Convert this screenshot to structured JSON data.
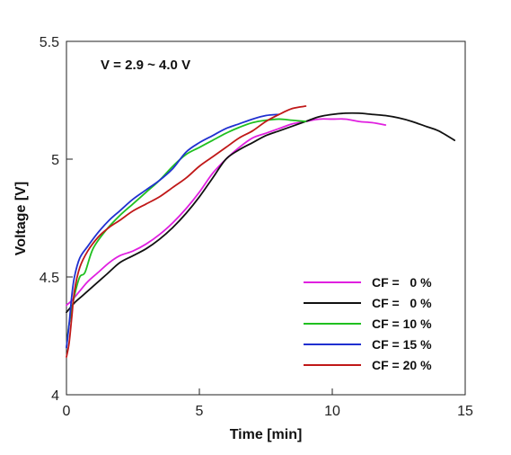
{
  "chart_data": {
    "type": "line",
    "title": "",
    "xlabel": "Time [min]",
    "ylabel": "Voltage [V]",
    "xlim": [
      0,
      15
    ],
    "ylim": [
      4,
      5.5
    ],
    "xticks": [
      0,
      5,
      10,
      15
    ],
    "yticks": [
      4,
      4.5,
      5,
      5.5
    ],
    "xtick_labels": [
      "0",
      "5",
      "10",
      "15"
    ],
    "ytick_labels": [
      "4",
      "4.5",
      "5",
      "5.5"
    ],
    "grid": false,
    "legend_position": "bottom-right",
    "annotation": "V = 2.9 ~ 4.0 V",
    "series": [
      {
        "name": "CF =   0 %",
        "color": "#e020e0",
        "x": [
          0,
          0.2,
          0.5,
          0.8,
          1.2,
          1.6,
          2,
          2.5,
          3,
          3.5,
          4,
          4.5,
          5,
          5.5,
          6,
          6.5,
          7,
          7.5,
          8,
          8.5,
          9,
          9.5,
          10,
          10.5,
          11,
          11.5,
          12
        ],
        "y": [
          4.38,
          4.4,
          4.44,
          4.48,
          4.52,
          4.56,
          4.59,
          4.61,
          4.64,
          4.68,
          4.73,
          4.79,
          4.86,
          4.94,
          5.0,
          5.05,
          5.09,
          5.11,
          5.13,
          5.15,
          5.16,
          5.17,
          5.17,
          5.17,
          5.16,
          5.155,
          5.145
        ]
      },
      {
        "name": "CF =   0 %",
        "color": "#111111",
        "x": [
          0,
          0.3,
          0.6,
          1,
          1.5,
          2,
          2.5,
          3,
          3.5,
          4,
          4.5,
          5,
          5.5,
          6,
          6.5,
          7,
          7.5,
          8,
          8.5,
          9,
          9.5,
          10,
          10.5,
          11,
          11.5,
          12,
          12.5,
          13,
          13.5,
          14,
          14.6
        ],
        "y": [
          4.35,
          4.39,
          4.42,
          4.46,
          4.51,
          4.56,
          4.59,
          4.62,
          4.66,
          4.71,
          4.77,
          4.84,
          4.92,
          5.0,
          5.04,
          5.07,
          5.1,
          5.12,
          5.14,
          5.16,
          5.18,
          5.19,
          5.195,
          5.195,
          5.19,
          5.185,
          5.175,
          5.16,
          5.14,
          5.12,
          5.08
        ]
      },
      {
        "name": "CF = 10 %",
        "color": "#20c020",
        "x": [
          0,
          0.1,
          0.3,
          0.5,
          0.7,
          1,
          1.5,
          2,
          2.5,
          3,
          3.5,
          4,
          4.5,
          5,
          5.5,
          6,
          6.5,
          7,
          7.5,
          8,
          8.5,
          9
        ],
        "y": [
          4.2,
          4.3,
          4.42,
          4.5,
          4.52,
          4.62,
          4.7,
          4.76,
          4.81,
          4.86,
          4.91,
          4.97,
          5.02,
          5.05,
          5.08,
          5.11,
          5.135,
          5.155,
          5.165,
          5.17,
          5.165,
          5.16
        ]
      },
      {
        "name": "CF = 15 %",
        "color": "#2030d0",
        "x": [
          0,
          0.1,
          0.2,
          0.3,
          0.5,
          0.8,
          1.2,
          1.6,
          2,
          2.5,
          3,
          3.5,
          4,
          4.5,
          5,
          5.5,
          6,
          6.5,
          7,
          7.5,
          8
        ],
        "y": [
          4.2,
          4.3,
          4.42,
          4.5,
          4.58,
          4.63,
          4.69,
          4.74,
          4.78,
          4.83,
          4.87,
          4.91,
          4.96,
          5.03,
          5.07,
          5.1,
          5.13,
          5.15,
          5.17,
          5.185,
          5.19
        ]
      },
      {
        "name": "CF = 20 %",
        "color": "#c01818",
        "x": [
          0,
          0.1,
          0.2,
          0.3,
          0.5,
          0.8,
          1.2,
          1.6,
          2,
          2.5,
          3,
          3.5,
          4,
          4.5,
          5,
          5.5,
          6,
          6.5,
          7,
          7.5,
          8,
          8.5,
          9
        ],
        "y": [
          4.16,
          4.22,
          4.33,
          4.44,
          4.54,
          4.61,
          4.67,
          4.71,
          4.74,
          4.78,
          4.81,
          4.84,
          4.88,
          4.92,
          4.97,
          5.01,
          5.05,
          5.09,
          5.12,
          5.16,
          5.19,
          5.215,
          5.225
        ]
      }
    ]
  }
}
